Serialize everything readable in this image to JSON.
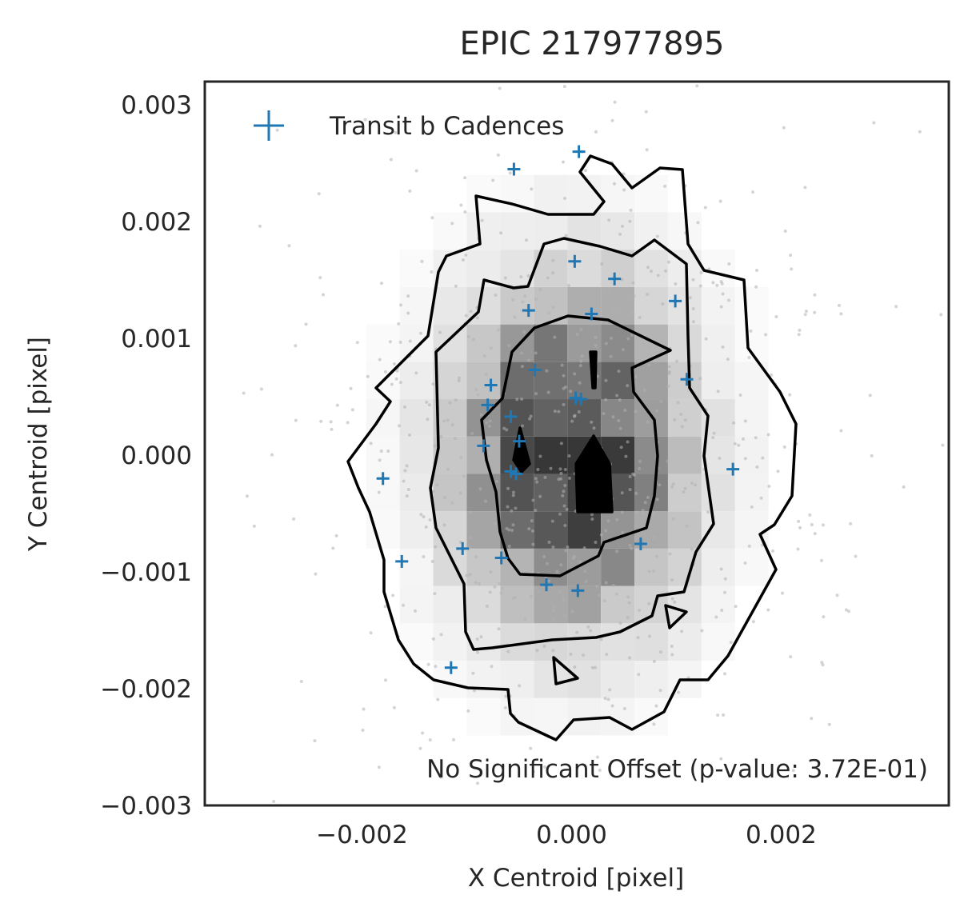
{
  "chart_data": {
    "type": "scatter",
    "title": "EPIC 217977895",
    "xlabel": "X Centroid [pixel]",
    "ylabel": "Y Centroid [pixel]",
    "xlim": [
      -0.0035,
      0.0036
    ],
    "ylim": [
      -0.003,
      0.0032
    ],
    "xticks": [
      -0.002,
      0.0,
      0.002
    ],
    "yticks": [
      0.003,
      0.002,
      0.001,
      0.0,
      -0.001,
      -0.002,
      -0.003
    ],
    "xtick_labels": [
      "−0.002",
      "0.000",
      "0.002"
    ],
    "ytick_labels": [
      "0.003",
      "0.002",
      "0.001",
      "0.000",
      "−0.001",
      "−0.002",
      "−0.003"
    ],
    "grid": false,
    "legend": {
      "position": "top-left",
      "entries": [
        "Transit b Cadences"
      ]
    },
    "annotation": "No Significant Offset (p-value: 3.72E-01)",
    "colors": {
      "transit": "#1f77b4",
      "background_points": "#b0b0b0",
      "contour": "#000000",
      "frame": "#262626"
    },
    "series": [
      {
        "name": "Transit b Cadences",
        "marker": "+",
        "points": [
          [
            -0.00055,
            0.00245
          ],
          [
            7e-05,
            0.0026
          ],
          [
            3e-05,
            0.00166
          ],
          [
            0.00041,
            0.00151
          ],
          [
            0.00099,
            0.00132
          ],
          [
            -0.00041,
            0.00124
          ],
          [
            0.00019,
            0.00121
          ],
          [
            -0.00035,
            0.00073
          ],
          [
            -0.00077,
            0.0006
          ],
          [
            0.0011,
            0.00065
          ],
          [
            4e-05,
            0.00049
          ],
          [
            9e-05,
            0.00048
          ],
          [
            -0.0008,
            0.00043
          ],
          [
            -0.00058,
            0.00033
          ],
          [
            -0.0005,
            0.00012
          ],
          [
            -0.00084,
            8e-05
          ],
          [
            -0.00058,
            -0.00014
          ],
          [
            -0.00053,
            -0.00016
          ],
          [
            0.00154,
            -0.00012
          ],
          [
            -0.0018,
            -0.0002
          ],
          [
            -0.00162,
            -0.00091
          ],
          [
            -0.00104,
            -0.0008
          ],
          [
            -0.00067,
            -0.00088
          ],
          [
            0.00066,
            -0.00076
          ],
          [
            -0.00024,
            -0.00111
          ],
          [
            6e-05,
            -0.00116
          ],
          [
            -0.00115,
            -0.00182
          ]
        ]
      }
    ]
  }
}
